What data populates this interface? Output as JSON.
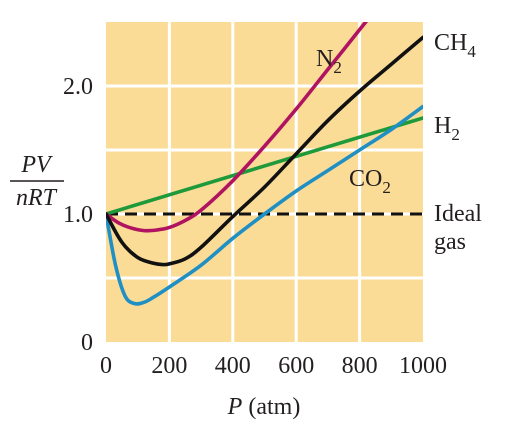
{
  "chart_data": {
    "type": "line",
    "title": "",
    "xlabel": {
      "var": "P",
      "unit": " (atm)"
    },
    "ylabel": {
      "numerator": "PV",
      "denominator": "nRT"
    },
    "xlim": [
      0,
      1000
    ],
    "ylim": [
      0,
      2.5
    ],
    "x_ticks": [
      "0",
      "200",
      "400",
      "600",
      "800",
      "1000"
    ],
    "y_ticks": [
      {
        "value": 0,
        "label": "0"
      },
      {
        "value": 1,
        "label": "1.0"
      },
      {
        "value": 2,
        "label": "2.0"
      }
    ],
    "grid": true,
    "background_color": "#fbdc97",
    "grid_color": "#ffffff",
    "series": [
      {
        "name": "N2",
        "label": {
          "main": "N",
          "sub": "2"
        },
        "color": "#b0135f",
        "x": [
          0,
          40,
          80,
          120,
          160,
          200,
          250,
          300,
          400,
          500,
          600,
          700,
          800,
          900
        ],
        "y": [
          1.0,
          0.93,
          0.89,
          0.87,
          0.875,
          0.895,
          0.95,
          1.03,
          1.26,
          1.53,
          1.82,
          2.13,
          2.44,
          2.75
        ]
      },
      {
        "name": "CH4",
        "label": {
          "main": "CH",
          "sub": "4"
        },
        "color": "#111111",
        "x": [
          0,
          50,
          100,
          150,
          180,
          200,
          250,
          300,
          400,
          500,
          600,
          700,
          800,
          900,
          1000
        ],
        "y": [
          1.0,
          0.78,
          0.66,
          0.615,
          0.605,
          0.61,
          0.65,
          0.74,
          0.98,
          1.21,
          1.47,
          1.73,
          1.96,
          2.17,
          2.38
        ]
      },
      {
        "name": "CO2",
        "label": {
          "main": "CO",
          "sub": "2"
        },
        "color": "#1f8fc4",
        "x": [
          0,
          30,
          60,
          90,
          120,
          150,
          200,
          300,
          400,
          500,
          600,
          700,
          800,
          900,
          1000
        ],
        "y": [
          1.0,
          0.6,
          0.36,
          0.3,
          0.31,
          0.35,
          0.43,
          0.6,
          0.81,
          1.0,
          1.18,
          1.34,
          1.5,
          1.66,
          1.84
        ]
      },
      {
        "name": "H2",
        "label": {
          "main": "H",
          "sub": "2"
        },
        "color": "#1f9a3a",
        "x": [
          0,
          1000
        ],
        "y": [
          1.0,
          1.75
        ]
      },
      {
        "name": "Ideal gas",
        "label": {
          "line1": "Ideal",
          "line2": "gas"
        },
        "color": "#111111",
        "dashed": true,
        "x": [
          0,
          1000
        ],
        "y": [
          1.0,
          1.0
        ]
      }
    ]
  }
}
